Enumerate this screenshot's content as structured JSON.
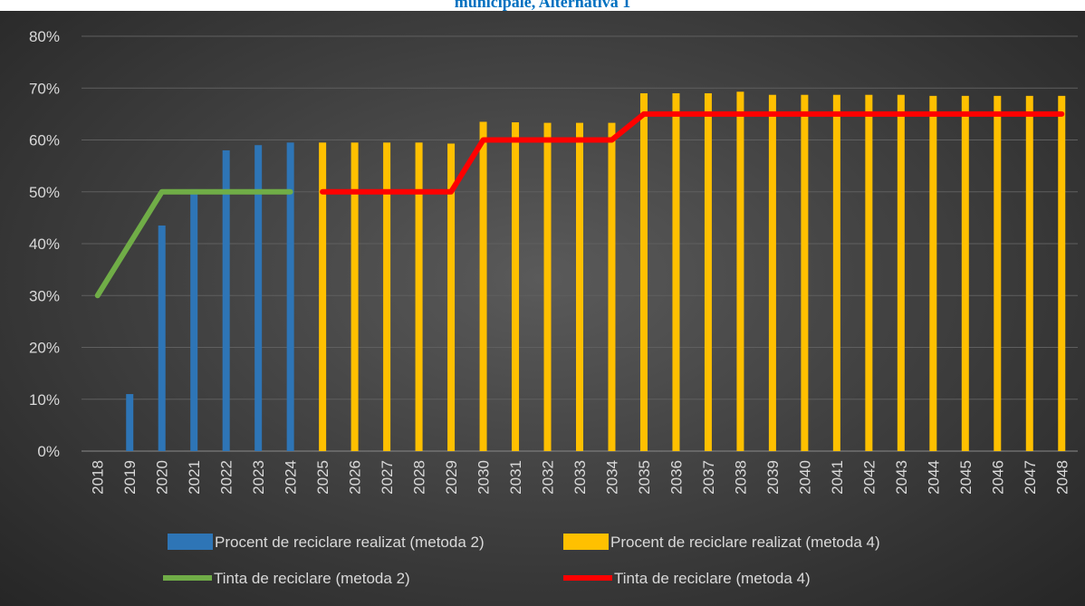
{
  "title": "municipale, Alternativa 1",
  "colors": {
    "bar_m2": "#2e75b6",
    "bar_m4": "#ffc000",
    "line_m2": "#70ad47",
    "line_m4": "#ff0000",
    "grid": "#5f5f5f"
  },
  "chart_data": {
    "type": "bar",
    "categories": [
      "2018",
      "2019",
      "2020",
      "2021",
      "2022",
      "2023",
      "2024",
      "2025",
      "2026",
      "2027",
      "2028",
      "2029",
      "2030",
      "2031",
      "2032",
      "2033",
      "2034",
      "2035",
      "2036",
      "2037",
      "2038",
      "2039",
      "2040",
      "2041",
      "2042",
      "2043",
      "2044",
      "2045",
      "2046",
      "2047",
      "2048"
    ],
    "ylim": [
      0,
      80
    ],
    "yticks": [
      "0%",
      "10%",
      "20%",
      "30%",
      "40%",
      "50%",
      "60%",
      "70%",
      "80%"
    ],
    "series": [
      {
        "name": "Procent de reciclare realizat (metoda 2)",
        "kind": "bar",
        "color": "#2e75b6",
        "values": [
          null,
          11,
          43.5,
          50.5,
          58,
          59,
          59.5,
          null,
          null,
          null,
          null,
          null,
          null,
          null,
          null,
          null,
          null,
          null,
          null,
          null,
          null,
          null,
          null,
          null,
          null,
          null,
          null,
          null,
          null,
          null,
          null
        ]
      },
      {
        "name": "Procent de reciclare realizat (metoda 4)",
        "kind": "bar",
        "color": "#ffc000",
        "values": [
          null,
          null,
          null,
          null,
          null,
          null,
          null,
          59.5,
          59.5,
          59.5,
          59.5,
          59.3,
          63.5,
          63.4,
          63.3,
          63.3,
          63.3,
          69,
          69,
          69,
          69.3,
          68.7,
          68.7,
          68.7,
          68.7,
          68.7,
          68.5,
          68.5,
          68.5,
          68.5,
          68.5
        ]
      },
      {
        "name": "Tinta de reciclare (metoda 2)",
        "kind": "line",
        "color": "#70ad47",
        "values": [
          30,
          40,
          50,
          50,
          50,
          50,
          50,
          null,
          null,
          null,
          null,
          null,
          null,
          null,
          null,
          null,
          null,
          null,
          null,
          null,
          null,
          null,
          null,
          null,
          null,
          null,
          null,
          null,
          null,
          null,
          null
        ]
      },
      {
        "name": "Tinta de reciclare (metoda 4)",
        "kind": "line",
        "color": "#ff0000",
        "values": [
          null,
          null,
          null,
          null,
          null,
          null,
          null,
          50,
          50,
          50,
          50,
          50,
          60,
          60,
          60,
          60,
          60,
          65,
          65,
          65,
          65,
          65,
          65,
          65,
          65,
          65,
          65,
          65,
          65,
          65,
          65
        ]
      }
    ],
    "legend": "bottom",
    "grid": true
  }
}
